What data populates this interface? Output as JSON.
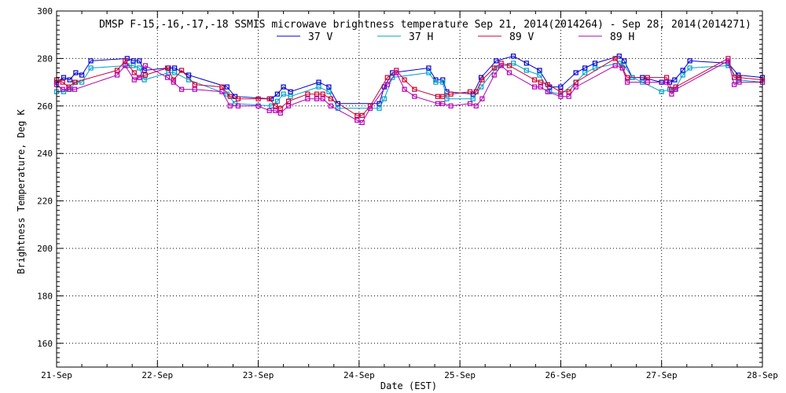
{
  "chart_data": {
    "type": "line",
    "title": "DMSP F-15,-16,-17,-18 SSMIS microwave brightness temperature Sep 21, 2014(2014264) - Sep 28, 2014(2014271)",
    "xlabel": "Date (EST)",
    "ylabel": "Brightness Temperature, Deg K",
    "xlim": [
      0,
      7
    ],
    "ylim": [
      150,
      300
    ],
    "grid": true,
    "legend_position": "top-center",
    "x_tick_labels": [
      "21-Sep",
      "22-Sep",
      "23-Sep",
      "24-Sep",
      "25-Sep",
      "26-Sep",
      "27-Sep",
      "28-Sep"
    ],
    "x_ticks": [
      0,
      1,
      2,
      3,
      4,
      5,
      6,
      7
    ],
    "y_ticks": [
      160,
      180,
      200,
      220,
      240,
      260,
      280,
      300
    ],
    "y_tick_labels": [
      "160",
      "180",
      "200",
      "220",
      "240",
      "260",
      "280",
      "300"
    ],
    "series": [
      {
        "name": "37 V",
        "color": "#0000cc",
        "x": [
          0.0,
          0.07,
          0.13,
          0.19,
          0.25,
          0.34,
          0.7,
          0.76,
          0.82,
          0.87,
          1.11,
          1.17,
          1.31,
          1.69,
          1.77,
          2.13,
          2.19,
          2.25,
          2.32,
          2.6,
          2.7,
          2.79,
          3.2,
          3.25,
          3.33,
          3.69,
          3.76,
          3.83,
          3.87,
          4.13,
          4.21,
          4.36,
          4.53,
          4.66,
          4.79,
          4.89,
          5.0,
          5.15,
          5.24,
          5.34,
          5.58,
          5.63,
          5.71,
          5.81,
          6.0,
          6.08,
          6.13,
          6.21,
          6.28,
          6.66,
          6.76,
          7.0
        ],
        "y": [
          270,
          272,
          271,
          274,
          273,
          279,
          280,
          279,
          279,
          275,
          276,
          276,
          273,
          268,
          264,
          263,
          265,
          268,
          266,
          270,
          268,
          261,
          261,
          268,
          274,
          276,
          271,
          271,
          266,
          265,
          272,
          279,
          281,
          278,
          275,
          268,
          268,
          274,
          276,
          278,
          281,
          279,
          272,
          272,
          270,
          270,
          271,
          275,
          279,
          278,
          273,
          272
        ]
      },
      {
        "name": "37 H",
        "color": "#00a0c8",
        "x": [
          0.0,
          0.07,
          0.13,
          0.19,
          0.25,
          0.34,
          0.7,
          0.76,
          0.82,
          0.87,
          1.11,
          1.17,
          1.31,
          1.69,
          1.77,
          2.13,
          2.19,
          2.25,
          2.32,
          2.6,
          2.7,
          2.79,
          3.2,
          3.25,
          3.33,
          3.69,
          3.76,
          3.83,
          3.87,
          4.13,
          4.21,
          4.36,
          4.53,
          4.66,
          4.79,
          4.89,
          5.0,
          5.15,
          5.24,
          5.34,
          5.58,
          5.63,
          5.71,
          5.81,
          6.0,
          6.08,
          6.13,
          6.21,
          6.28,
          6.66,
          6.76,
          7.0
        ],
        "y": [
          266,
          266,
          267,
          270,
          270,
          276,
          277,
          277,
          276,
          271,
          274,
          274,
          271,
          265,
          261,
          260,
          262,
          265,
          264,
          268,
          266,
          259,
          259,
          263,
          272,
          274,
          270,
          270,
          263,
          263,
          268,
          276,
          278,
          275,
          273,
          266,
          265,
          270,
          274,
          276,
          278,
          277,
          272,
          270,
          266,
          267,
          267,
          273,
          276,
          277,
          271,
          270
        ]
      },
      {
        "name": "89 V",
        "color": "#cc0033",
        "x": [
          0.0,
          0.06,
          0.12,
          0.18,
          0.6,
          0.68,
          0.77,
          0.82,
          0.88,
          1.1,
          1.16,
          1.24,
          1.37,
          1.64,
          1.72,
          1.8,
          2.0,
          2.11,
          2.17,
          2.22,
          2.3,
          2.49,
          2.58,
          2.64,
          2.72,
          2.98,
          3.03,
          3.11,
          3.28,
          3.37,
          3.45,
          3.55,
          3.78,
          3.83,
          3.91,
          4.1,
          4.16,
          4.22,
          4.34,
          4.41,
          4.49,
          4.74,
          4.8,
          4.87,
          5.0,
          5.08,
          5.15,
          5.54,
          5.61,
          5.66,
          5.86,
          6.05,
          6.1,
          6.14,
          6.66,
          6.72,
          6.77,
          7.0
        ],
        "y": [
          271,
          270,
          268,
          270,
          275,
          279,
          274,
          272,
          273,
          276,
          271,
          275,
          269,
          268,
          264,
          263,
          263,
          263,
          260,
          259,
          262,
          265,
          265,
          265,
          263,
          256,
          256,
          260,
          272,
          275,
          271,
          267,
          264,
          264,
          265,
          266,
          266,
          271,
          276,
          278,
          277,
          271,
          270,
          269,
          266,
          266,
          270,
          280,
          276,
          272,
          272,
          272,
          267,
          268,
          280,
          272,
          272,
          271
        ]
      },
      {
        "name": "89 H",
        "color": "#b400b4",
        "x": [
          0.0,
          0.06,
          0.12,
          0.18,
          0.6,
          0.68,
          0.77,
          0.82,
          0.88,
          1.1,
          1.16,
          1.24,
          1.37,
          1.64,
          1.72,
          1.8,
          2.0,
          2.11,
          2.17,
          2.22,
          2.3,
          2.49,
          2.58,
          2.64,
          2.72,
          2.98,
          3.03,
          3.11,
          3.28,
          3.37,
          3.45,
          3.55,
          3.78,
          3.83,
          3.91,
          4.1,
          4.16,
          4.22,
          4.34,
          4.41,
          4.49,
          4.74,
          4.8,
          4.87,
          5.0,
          5.08,
          5.15,
          5.54,
          5.61,
          5.66,
          5.86,
          6.05,
          6.1,
          6.14,
          6.66,
          6.72,
          6.77,
          7.0
        ],
        "y": [
          269,
          267,
          267,
          267,
          273,
          277,
          271,
          272,
          277,
          272,
          270,
          267,
          267,
          266,
          260,
          260,
          260,
          258,
          258,
          257,
          260,
          263,
          263,
          263,
          260,
          254,
          253,
          259,
          269,
          274,
          267,
          264,
          261,
          261,
          260,
          261,
          260,
          263,
          273,
          277,
          274,
          268,
          268,
          266,
          264,
          264,
          268,
          277,
          276,
          270,
          270,
          270,
          265,
          267,
          279,
          269,
          270,
          270
        ]
      }
    ]
  }
}
